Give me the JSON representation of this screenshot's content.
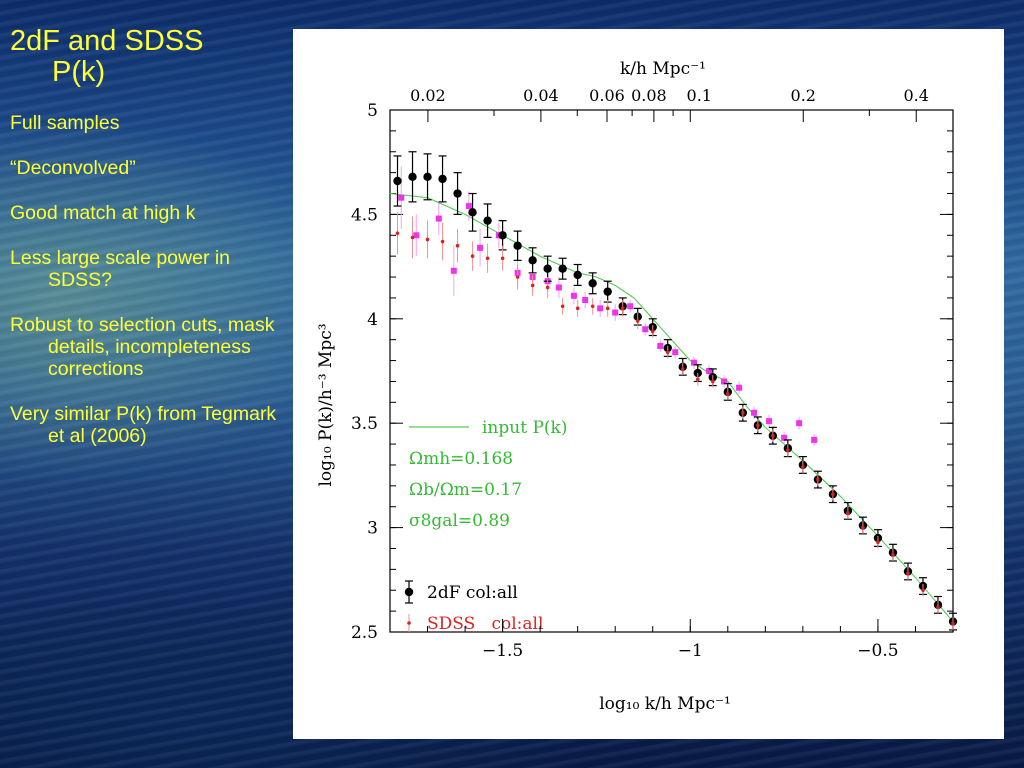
{
  "slide": {
    "title_line1": "2dF and SDSS",
    "title_line2": "P(k)",
    "bullets": [
      "Full samples",
      "“Deconvolved”",
      "Good match at high k",
      "Less large scale power in SDSS?",
      "Robust to selection cuts, mask details, incompleteness corrections",
      "Very similar P(k) from Tegmark et al (2006)"
    ]
  },
  "chart_data": {
    "type": "scatter",
    "title": "",
    "xlabel": "log₁₀ k/h Mpc⁻¹",
    "ylabel": "log₁₀ P(k)/h⁻³ Mpc³",
    "top_xlabel": "k/h Mpc⁻¹",
    "xlim": [
      -1.8,
      -0.3
    ],
    "ylim": [
      2.5,
      5.0
    ],
    "x_ticks": [
      -1.5,
      -1,
      -0.5
    ],
    "x_tick_labels": [
      "−1.5",
      "−1",
      "−0.5"
    ],
    "y_ticks": [
      2.5,
      3,
      3.5,
      4,
      4.5,
      5
    ],
    "y_tick_labels": [
      "2.5",
      "3",
      "3.5",
      "4",
      "4.5",
      "5"
    ],
    "top_ticks": [
      0.02,
      0.04,
      0.06,
      0.08,
      0.1,
      0.2,
      0.4
    ],
    "top_tick_labels": [
      "0.02",
      "0.04",
      "0.06",
      "0.08",
      "0.1",
      "0.2",
      "0.4"
    ],
    "annotations": [
      "input P(k)",
      "Ωmh=0.168",
      "Ωb/Ωm=0.17",
      "σ8gal=0.89"
    ],
    "legend": {
      "placement": "bottom-left",
      "entries": [
        "2dF col:all",
        "SDSS   col:all"
      ]
    },
    "colors": {
      "twodf": "#000000",
      "sdss": "#dd2222",
      "pink": "#ee33ee",
      "model": "#55cc55",
      "annotation": "#33bb33"
    },
    "series": [
      {
        "name": "2dF col:all",
        "x": [
          -1.78,
          -1.74,
          -1.7,
          -1.66,
          -1.62,
          -1.58,
          -1.54,
          -1.5,
          -1.46,
          -1.42,
          -1.38,
          -1.34,
          -1.3,
          -1.26,
          -1.22,
          -1.18,
          -1.14,
          -1.1,
          -1.06,
          -1.02,
          -0.98,
          -0.94,
          -0.9,
          -0.86,
          -0.82,
          -0.78,
          -0.74,
          -0.7,
          -0.66,
          -0.62,
          -0.58,
          -0.54,
          -0.5,
          -0.46,
          -0.42,
          -0.38,
          -0.34,
          -0.3
        ],
        "y": [
          4.66,
          4.68,
          4.68,
          4.67,
          4.6,
          4.51,
          4.47,
          4.4,
          4.35,
          4.28,
          4.24,
          4.24,
          4.21,
          4.17,
          4.13,
          4.06,
          4.01,
          3.96,
          3.86,
          3.77,
          3.74,
          3.72,
          3.65,
          3.55,
          3.49,
          3.44,
          3.38,
          3.3,
          3.23,
          3.16,
          3.08,
          3.01,
          2.95,
          2.88,
          2.79,
          2.72,
          2.63,
          2.55
        ],
        "err": [
          0.12,
          0.12,
          0.11,
          0.11,
          0.1,
          0.09,
          0.08,
          0.07,
          0.07,
          0.06,
          0.06,
          0.05,
          0.05,
          0.05,
          0.05,
          0.04,
          0.04,
          0.04,
          0.04,
          0.04,
          0.04,
          0.04,
          0.04,
          0.04,
          0.04,
          0.04,
          0.04,
          0.04,
          0.04,
          0.04,
          0.04,
          0.04,
          0.04,
          0.04,
          0.04,
          0.04,
          0.04,
          0.04
        ]
      },
      {
        "name": "SDSS   col:all",
        "x": [
          -1.78,
          -1.74,
          -1.7,
          -1.66,
          -1.62,
          -1.58,
          -1.54,
          -1.5,
          -1.46,
          -1.42,
          -1.38,
          -1.34,
          -1.3,
          -1.26,
          -1.22,
          -1.18,
          -1.14,
          -1.1,
          -1.06,
          -1.02,
          -0.98,
          -0.94,
          -0.9,
          -0.86,
          -0.82,
          -0.78,
          -0.74,
          -0.7,
          -0.66,
          -0.62,
          -0.58,
          -0.54,
          -0.5,
          -0.46,
          -0.42,
          -0.38,
          -0.34,
          -0.3
        ],
        "y": [
          4.41,
          4.39,
          4.38,
          4.37,
          4.35,
          4.3,
          4.29,
          4.29,
          4.2,
          4.16,
          4.15,
          4.06,
          4.05,
          4.06,
          4.05,
          4.05,
          3.99,
          3.94,
          3.84,
          3.76,
          3.71,
          3.7,
          3.64,
          3.55,
          3.49,
          3.44,
          3.37,
          3.29,
          3.23,
          3.16,
          3.07,
          3.0,
          2.93,
          2.87,
          2.78,
          2.7,
          2.62,
          2.54
        ],
        "err": [
          0.1,
          0.1,
          0.09,
          0.09,
          0.08,
          0.07,
          0.07,
          0.06,
          0.06,
          0.05,
          0.05,
          0.04,
          0.04,
          0.04,
          0.04,
          0.04,
          0.04,
          0.03,
          0.03,
          0.03,
          0.03,
          0.03,
          0.03,
          0.03,
          0.03,
          0.03,
          0.03,
          0.03,
          0.03,
          0.03,
          0.03,
          0.03,
          0.03,
          0.03,
          0.03,
          0.03,
          0.03,
          0.03
        ]
      },
      {
        "name": "",
        "x": [
          -1.77,
          -1.73,
          -1.67,
          -1.63,
          -1.59,
          -1.56,
          -1.51,
          -1.46,
          -1.42,
          -1.38,
          -1.35,
          -1.31,
          -1.28,
          -1.24,
          -1.2,
          -1.16,
          -1.12,
          -1.08,
          -1.04,
          -0.99,
          -0.95,
          -0.91,
          -0.87,
          -0.83,
          -0.79,
          -0.75,
          -0.71,
          -0.67
        ],
        "y": [
          4.58,
          4.4,
          4.48,
          4.23,
          4.54,
          4.34,
          4.4,
          4.22,
          4.2,
          4.18,
          4.15,
          4.11,
          4.09,
          4.05,
          4.03,
          4.06,
          3.95,
          3.87,
          3.84,
          3.79,
          3.75,
          3.7,
          3.67,
          3.55,
          3.51,
          3.43,
          3.5,
          3.42
        ],
        "err": [
          0.15,
          0.1,
          0.08,
          0.12,
          0.07,
          0.09,
          0.06,
          0.06,
          0.06,
          0.05,
          0.05,
          0.04,
          0.04,
          0.04,
          0.04,
          0.03,
          0.03,
          0.03,
          0.03,
          0.03,
          0.03,
          0.03,
          0.03,
          0.03,
          0.03,
          0.03,
          0.03,
          0.03
        ]
      },
      {
        "name": "input P(k)",
        "x": [
          -1.8,
          -1.7,
          -1.6,
          -1.5,
          -1.4,
          -1.3,
          -1.25,
          -1.2,
          -1.15,
          -1.1,
          -1.05,
          -1.0,
          -0.95,
          -0.9,
          -0.85,
          -0.8,
          -0.75,
          -0.7,
          -0.6,
          -0.5,
          -0.4,
          -0.3
        ],
        "y": [
          4.6,
          4.58,
          4.5,
          4.4,
          4.3,
          4.22,
          4.2,
          4.16,
          4.1,
          4.0,
          3.9,
          3.8,
          3.74,
          3.7,
          3.58,
          3.48,
          3.4,
          3.32,
          3.15,
          2.96,
          2.76,
          2.55
        ]
      }
    ]
  }
}
